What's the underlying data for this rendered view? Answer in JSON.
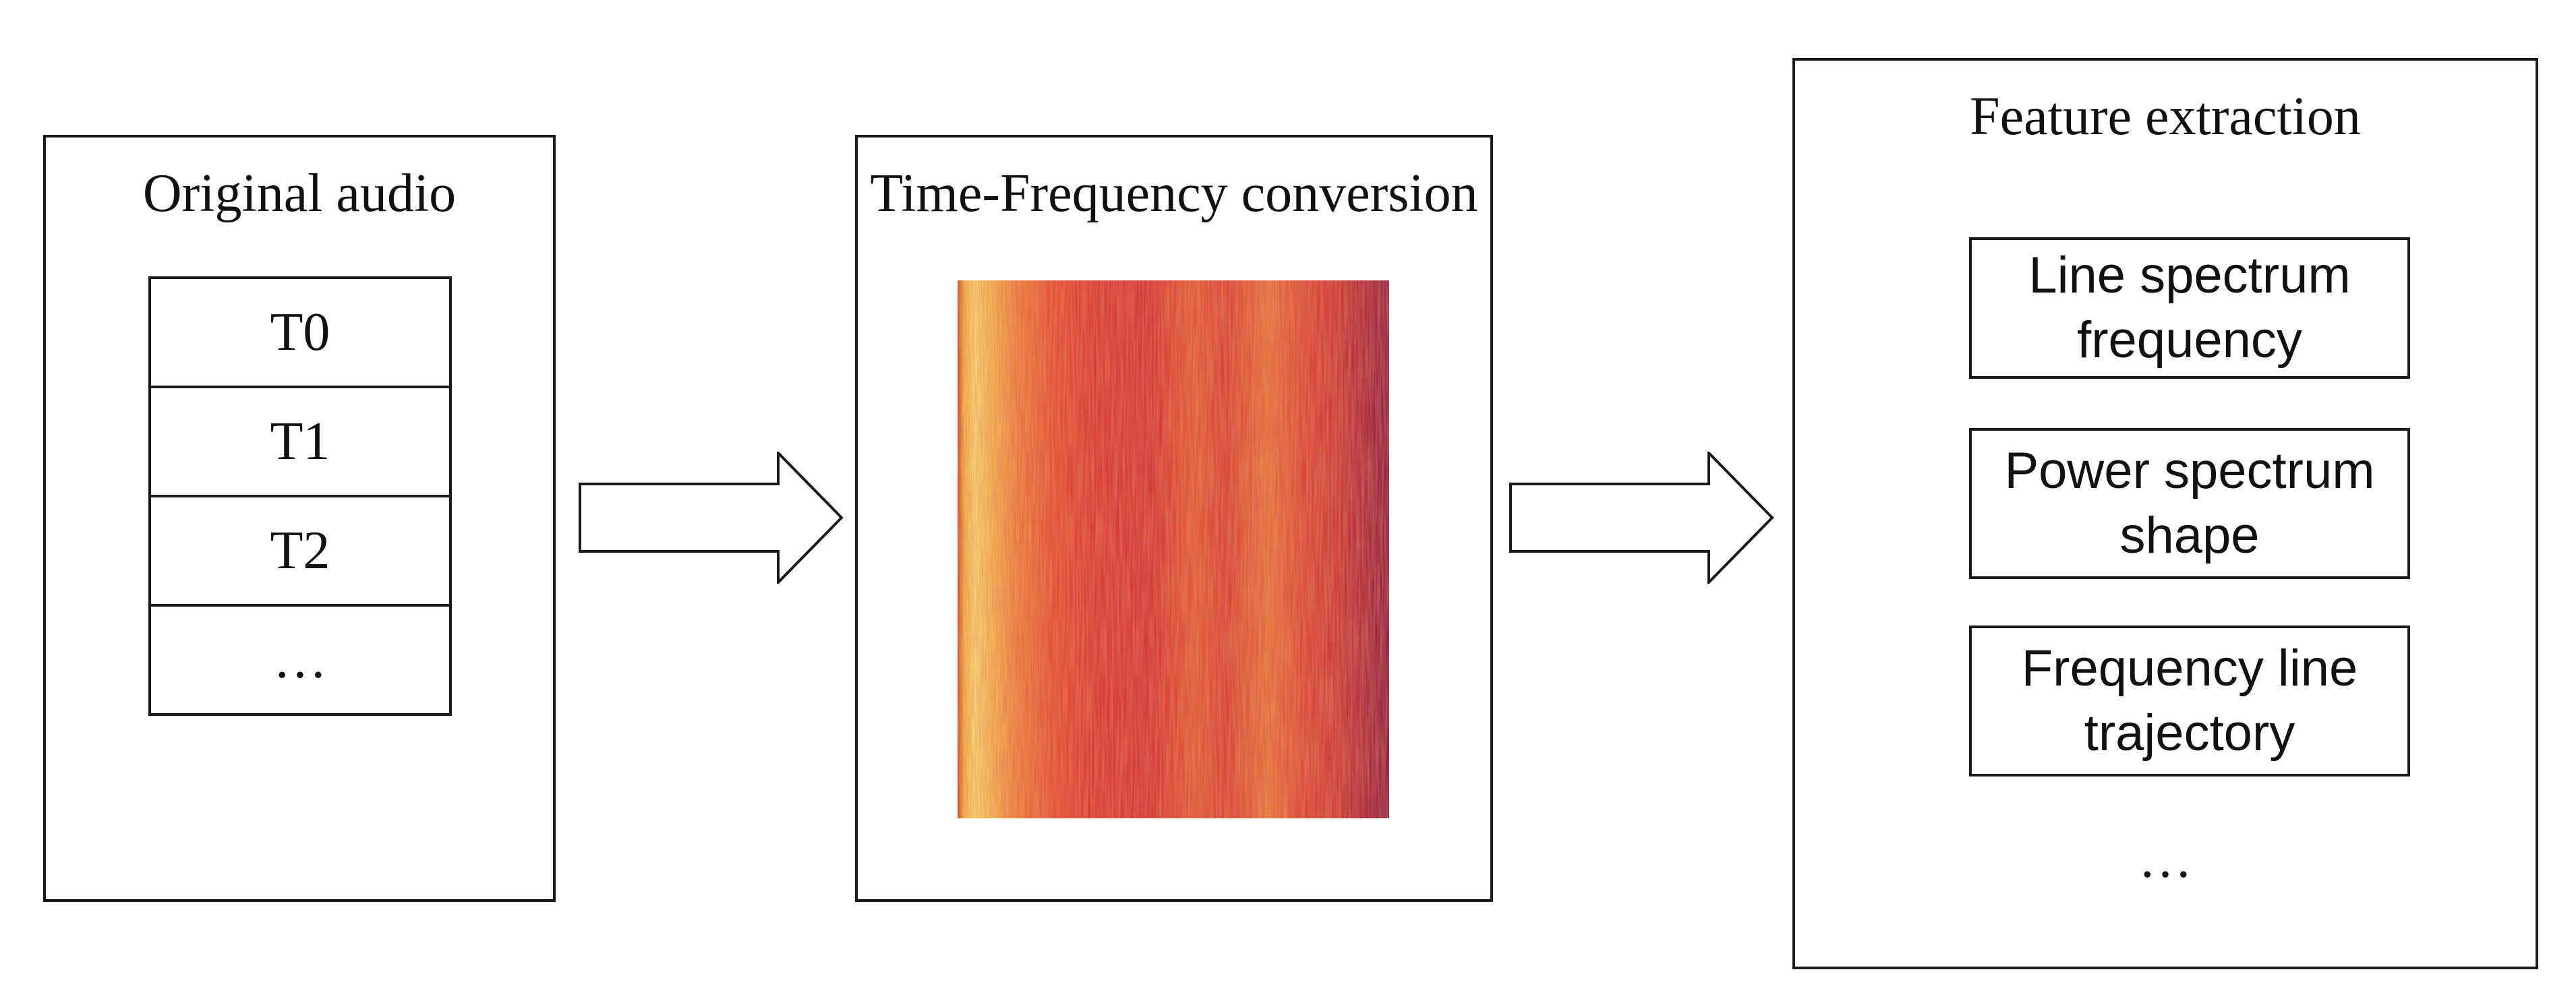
{
  "panels": {
    "audio": {
      "title": "Original audio",
      "segments": [
        "T0",
        "T1",
        "T2",
        "…"
      ]
    },
    "time_frequency": {
      "title": "Time-Frequency conversion",
      "image": "spectrogram"
    },
    "features": {
      "title": "Feature extraction",
      "items": [
        "Line spectrum frequency",
        "Power spectrum shape",
        "Frequency line trajectory"
      ],
      "more": "…"
    }
  },
  "arrows": [
    "right-arrow",
    "right-arrow"
  ],
  "colors": {
    "border": "#1a1a1a",
    "background": "#ffffff",
    "spectrogram_low": "#f6e46a",
    "spectrogram_mid": "#e8452a",
    "spectrogram_high": "#8a1236"
  }
}
